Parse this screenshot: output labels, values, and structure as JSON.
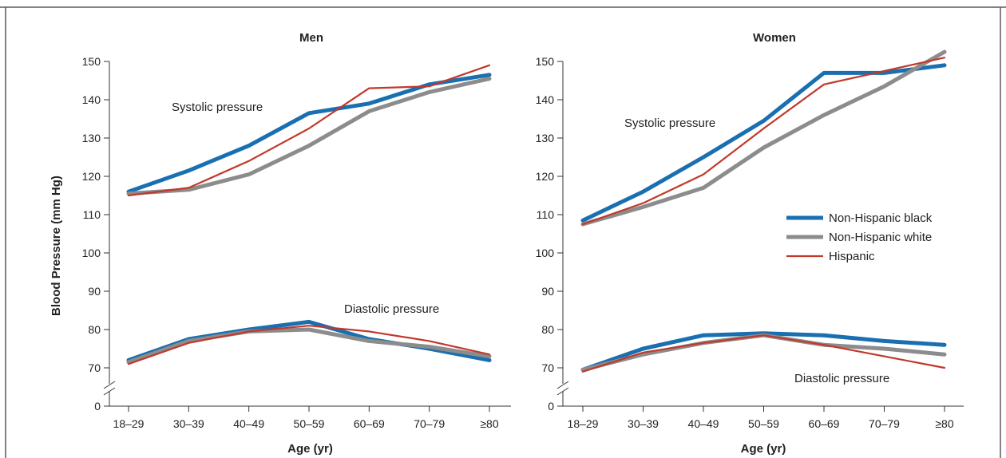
{
  "figure": {
    "ylabel": "Blood Pressure (mm Hg)",
    "xlabel": "Age (yr)"
  },
  "legend": {
    "placement": "right, inside Women panel",
    "items": [
      {
        "label": "Non-Hispanic black",
        "color": "#1a6fb0"
      },
      {
        "label": "Non-Hispanic white",
        "color": "#8c8c8c"
      },
      {
        "label": "Hispanic",
        "color": "#c0392b"
      }
    ]
  },
  "chart_data": [
    {
      "type": "line",
      "title": "Men",
      "xlabel": "Age (yr)",
      "ylabel": "Blood Pressure (mm Hg)",
      "categories": [
        "18–29",
        "30–39",
        "40–49",
        "50–59",
        "60–69",
        "70–79",
        "≥80"
      ],
      "yticks": [
        0,
        70,
        80,
        90,
        100,
        110,
        120,
        130,
        140,
        150
      ],
      "ylim": [
        0,
        150
      ],
      "axis_break": true,
      "grid": false,
      "annotations": [
        "Systolic pressure",
        "Diastolic pressure"
      ],
      "series": [
        {
          "name": "Non-Hispanic black",
          "measure": "Systolic pressure",
          "color": "#1a6fb0",
          "values": [
            116,
            121.5,
            128,
            136.5,
            139,
            144,
            146.5
          ]
        },
        {
          "name": "Non-Hispanic white",
          "measure": "Systolic pressure",
          "color": "#8c8c8c",
          "values": [
            115.5,
            116.5,
            120.5,
            128,
            137,
            142,
            145.5
          ]
        },
        {
          "name": "Hispanic",
          "measure": "Systolic pressure",
          "color": "#c0392b",
          "values": [
            115,
            117,
            124,
            132.5,
            143,
            143.5,
            149
          ]
        },
        {
          "name": "Non-Hispanic black",
          "measure": "Diastolic pressure",
          "color": "#1a6fb0",
          "values": [
            72,
            77.5,
            80,
            82,
            77.5,
            75,
            72
          ]
        },
        {
          "name": "Non-Hispanic white",
          "measure": "Diastolic pressure",
          "color": "#8c8c8c",
          "values": [
            71.5,
            77,
            79.5,
            80,
            77,
            75.5,
            73
          ]
        },
        {
          "name": "Hispanic",
          "measure": "Diastolic pressure",
          "color": "#c0392b",
          "values": [
            71,
            76.5,
            79.5,
            81,
            79.5,
            77,
            73.5
          ]
        }
      ]
    },
    {
      "type": "line",
      "title": "Women",
      "xlabel": "Age (yr)",
      "ylabel": "",
      "categories": [
        "18–29",
        "30–39",
        "40–49",
        "50–59",
        "60–69",
        "70–79",
        "≥80"
      ],
      "yticks": [
        0,
        70,
        80,
        90,
        100,
        110,
        120,
        130,
        140,
        150
      ],
      "ylim": [
        0,
        150
      ],
      "axis_break": true,
      "grid": false,
      "annotations": [
        "Systolic pressure",
        "Diastolic pressure"
      ],
      "series": [
        {
          "name": "Non-Hispanic black",
          "measure": "Systolic pressure",
          "color": "#1a6fb0",
          "values": [
            108.5,
            116,
            125,
            134.5,
            147,
            147,
            149
          ]
        },
        {
          "name": "Non-Hispanic white",
          "measure": "Systolic pressure",
          "color": "#8c8c8c",
          "values": [
            107.5,
            112,
            117,
            127.5,
            136,
            143.5,
            152.5
          ]
        },
        {
          "name": "Hispanic",
          "measure": "Systolic pressure",
          "color": "#c0392b",
          "values": [
            107.5,
            113,
            120.5,
            132.5,
            144,
            147.5,
            151
          ]
        },
        {
          "name": "Non-Hispanic black",
          "measure": "Diastolic pressure",
          "color": "#1a6fb0",
          "values": [
            69.5,
            75,
            78.5,
            79,
            78.5,
            77,
            76
          ]
        },
        {
          "name": "Non-Hispanic white",
          "measure": "Diastolic pressure",
          "color": "#8c8c8c",
          "values": [
            69.5,
            73.5,
            76.5,
            78.5,
            76,
            75,
            73.5
          ]
        },
        {
          "name": "Hispanic",
          "measure": "Diastolic pressure",
          "color": "#c0392b",
          "values": [
            69,
            74,
            76.5,
            78.5,
            76,
            73,
            70
          ]
        }
      ]
    }
  ]
}
